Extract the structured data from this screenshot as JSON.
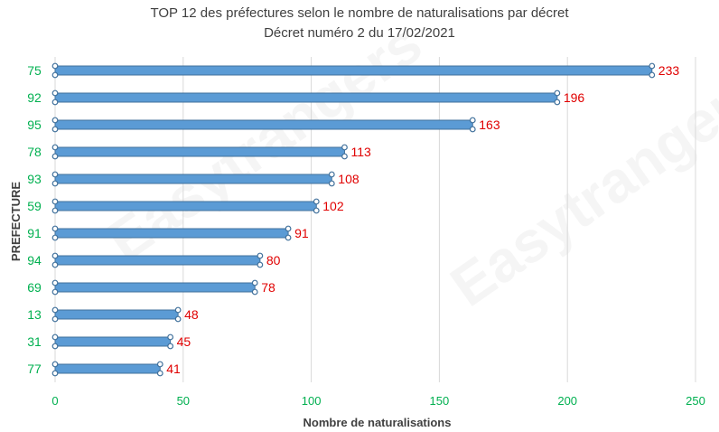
{
  "chart_data": {
    "type": "bar",
    "orientation": "horizontal",
    "title": "TOP 12 des préfectures selon le nombre de naturalisations par décret",
    "subtitle": "Décret numéro 2 du 17/02/2021",
    "xlabel": "Nombre de naturalisations",
    "ylabel": "PREFECTURE",
    "categories": [
      "75",
      "92",
      "95",
      "78",
      "93",
      "59",
      "91",
      "94",
      "69",
      "13",
      "31",
      "77"
    ],
    "values": [
      233,
      196,
      163,
      113,
      108,
      102,
      91,
      80,
      78,
      48,
      45,
      41
    ],
    "xlim": [
      0,
      250
    ],
    "xticks": [
      "0",
      "50",
      "100",
      "150",
      "200",
      "250"
    ],
    "grid": "vertical",
    "data_labels": true
  },
  "colors": {
    "bar": "#5B9BD5",
    "bar_edge": "#41719C",
    "category_label": "#00B050",
    "value_label": "#E00000",
    "tick_label": "#00B050",
    "grid": "#D9D9D9"
  },
  "watermark": "Easytrangers"
}
